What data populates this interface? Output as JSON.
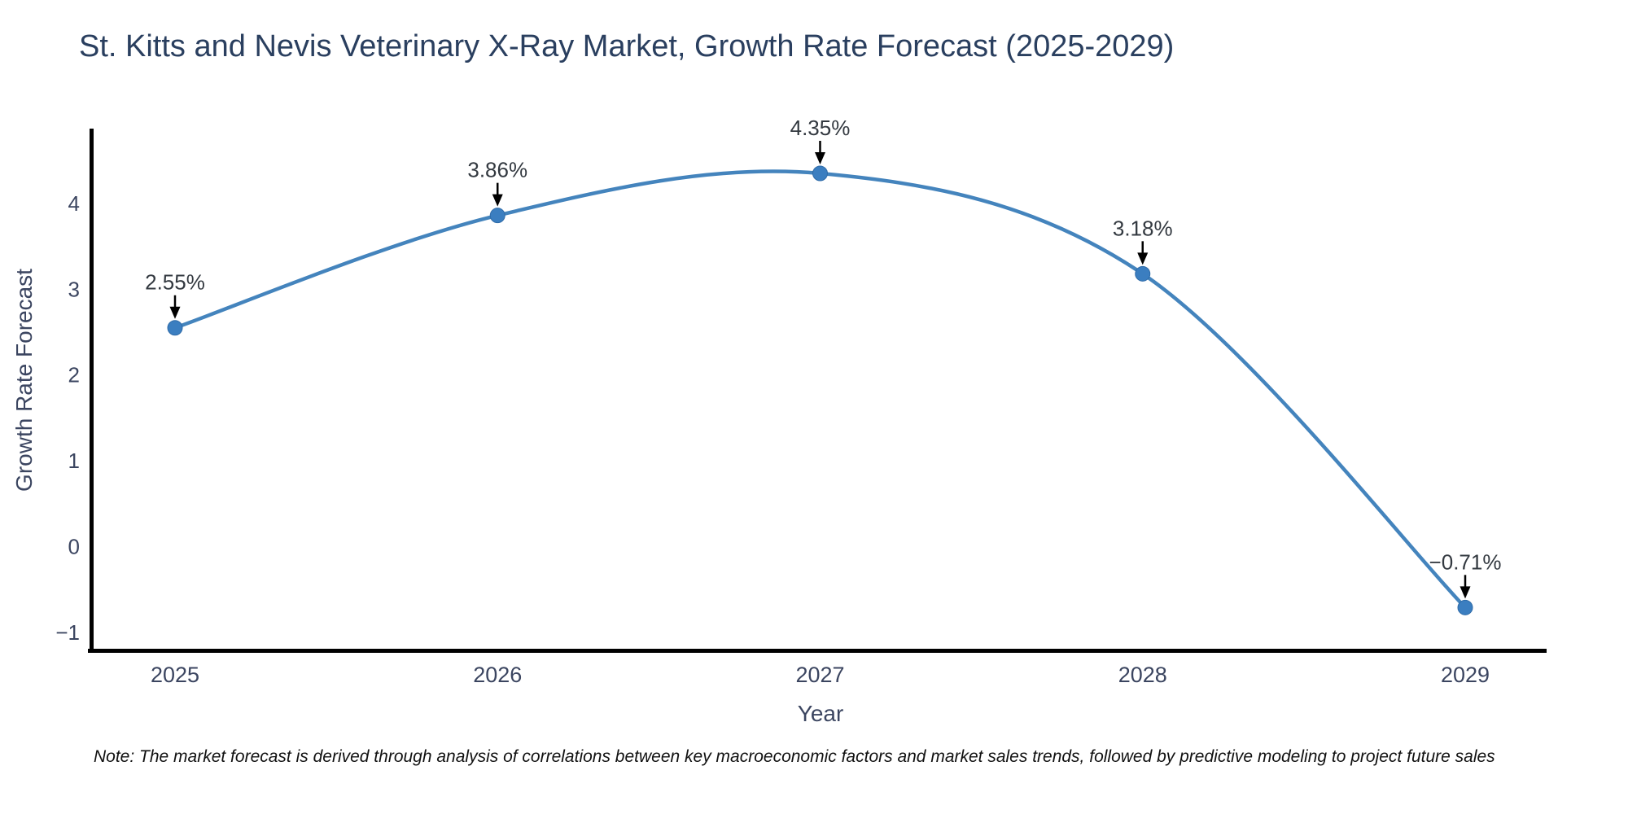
{
  "chart_data": {
    "type": "line",
    "title": "St. Kitts and Nevis Veterinary X-Ray Market, Growth Rate Forecast (2025-2029)",
    "x": [
      "2025",
      "2026",
      "2027",
      "2028",
      "2029"
    ],
    "values": [
      2.55,
      3.86,
      4.35,
      3.18,
      -0.71
    ],
    "point_labels": [
      "2.55%",
      "3.86%",
      "4.35%",
      "3.18%",
      "−0.71%"
    ],
    "xlabel": "Year",
    "ylabel": "Growth Rate Forecast",
    "yticks": [
      -1,
      0,
      1,
      2,
      3,
      4
    ],
    "ytick_labels": [
      "−1",
      "0",
      "1",
      "2",
      "3",
      "4"
    ],
    "ylim": [
      -1.25,
      4.9
    ],
    "grid": false,
    "legend": "none",
    "smooth": true,
    "line_color": "#4484bd",
    "marker_color": "#3b7ec0",
    "marker_edge_color": "#2f6ba8",
    "annotation_arrow_color": "#000000"
  },
  "note": "Note: The market forecast is derived through analysis of correlations between key macroeconomic factors and market sales trends, followed by predictive modeling to project future sales",
  "colors": {
    "title_text": "#2a3f5f",
    "tick_text": "#3b4560",
    "annotation_text": "#333940",
    "axis_line": "#000000",
    "background": "#ffffff"
  }
}
